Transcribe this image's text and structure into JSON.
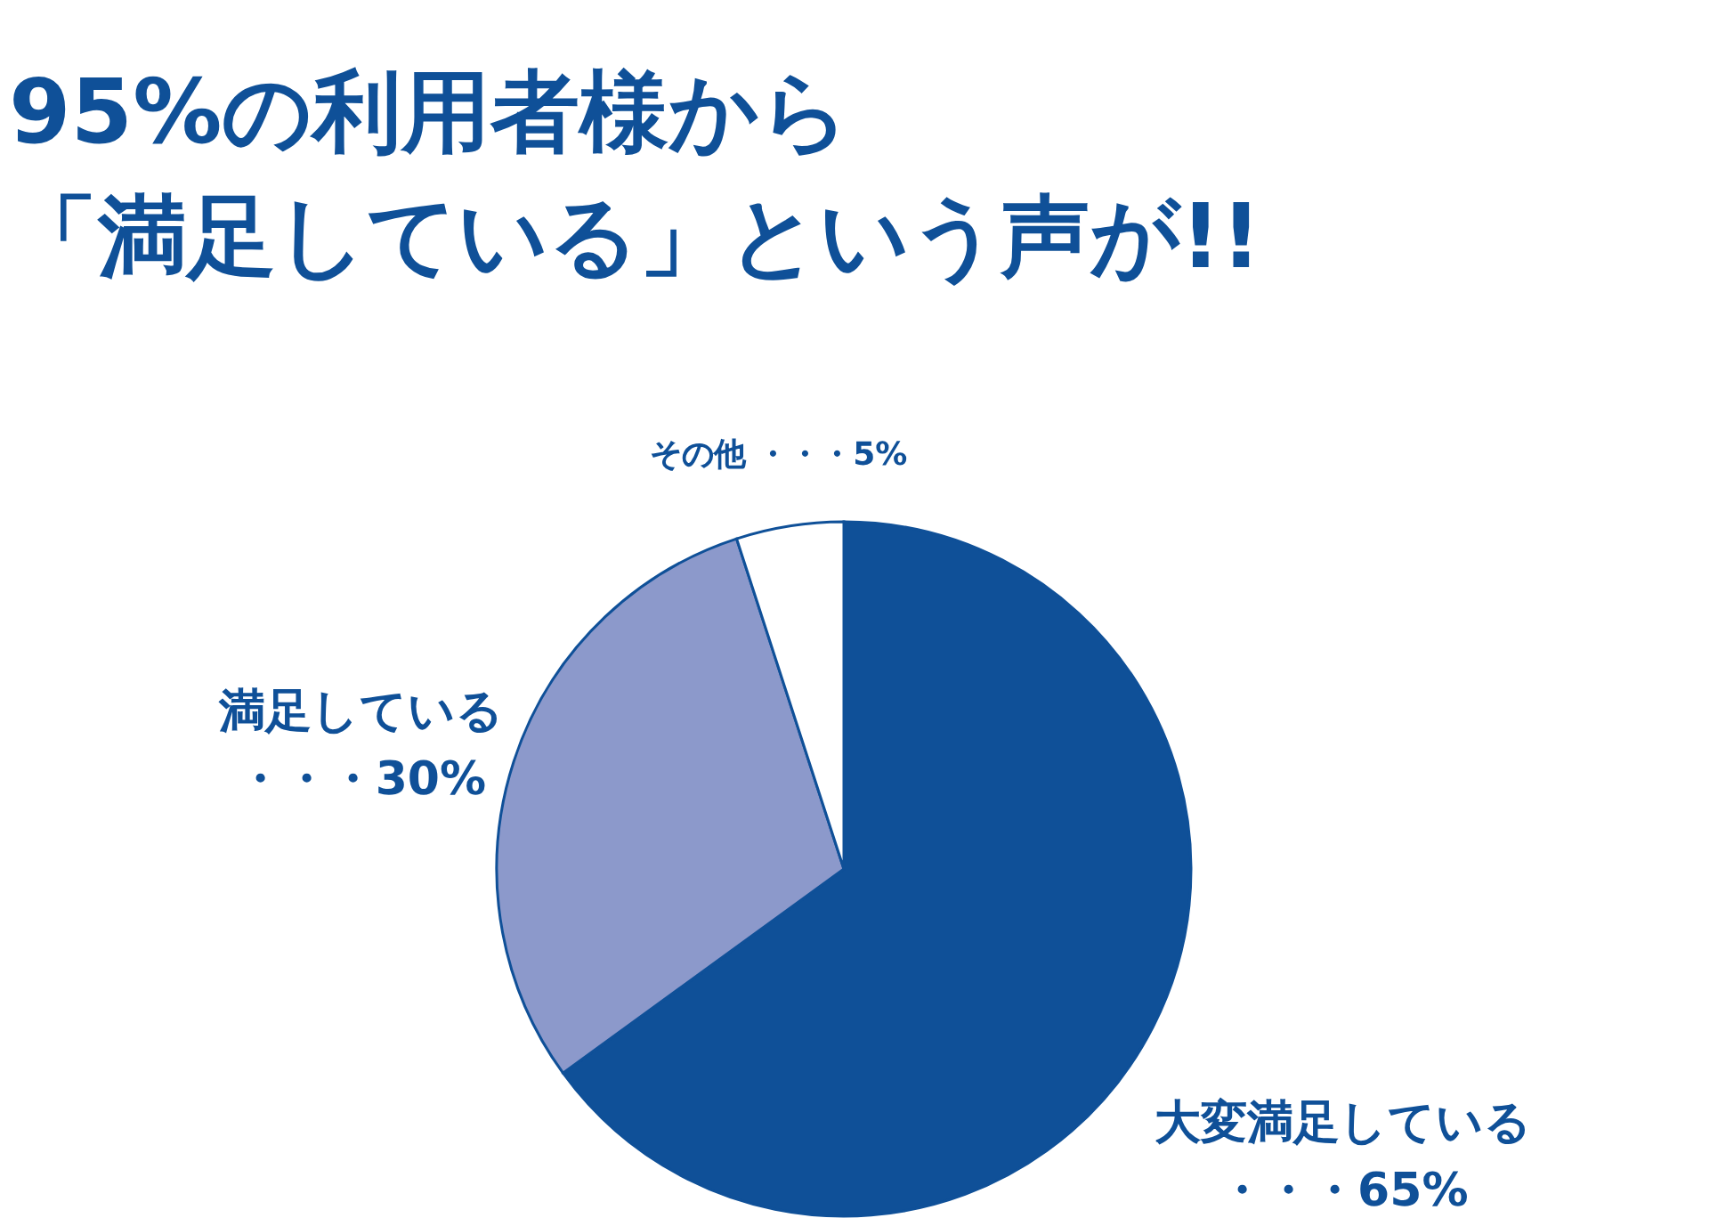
{
  "chart_data": {
    "type": "pie",
    "title": "95%の利用者様から",
    "subtitle": "「満足している」という声が!!",
    "categories": [
      "大変満足している",
      "満足している",
      "その他"
    ],
    "values": [
      65,
      30,
      5
    ],
    "colors": [
      "#0f5098",
      "#8c99cb",
      "#ffffff"
    ],
    "value_labels": [
      "・・・65%",
      "・・・30%",
      "・・・5%"
    ]
  }
}
